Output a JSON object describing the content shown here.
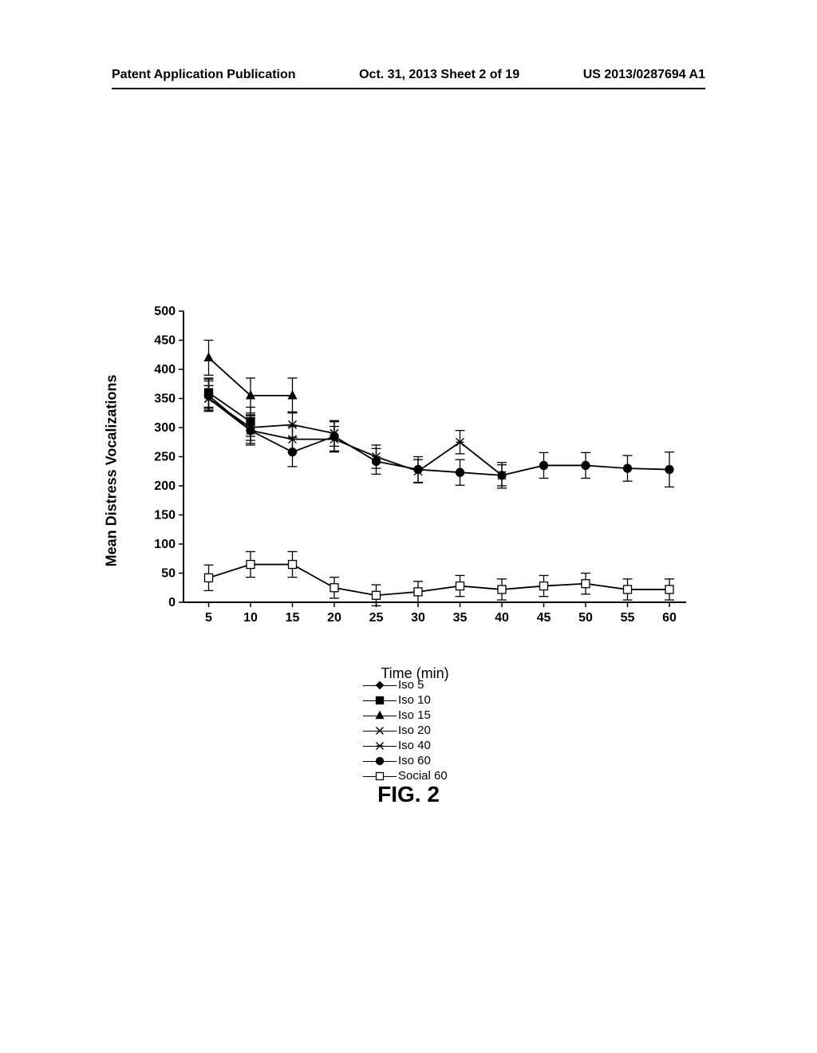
{
  "header": {
    "left": "Patent Application Publication",
    "center": "Oct. 31, 2013  Sheet 2 of 19",
    "right": "US 2013/0287694 A1"
  },
  "figure_caption": "FIG. 2",
  "chart": {
    "type": "line",
    "ylabel": "Mean Distress Vocalizations",
    "xlabel": "Time (min)",
    "background_color": "#ffffff",
    "axis_color": "#000000",
    "x_ticks": [
      5,
      10,
      15,
      20,
      25,
      30,
      35,
      40,
      45,
      50,
      55,
      60
    ],
    "y_ticks": [
      0,
      50,
      100,
      150,
      200,
      250,
      300,
      350,
      400,
      450,
      500
    ],
    "xlim": [
      2,
      62
    ],
    "ylim": [
      0,
      500
    ],
    "tick_fontsize": 16,
    "line_width": 1.8,
    "error_cap_width": 6,
    "series": [
      {
        "name": "Iso 5",
        "marker": "diamond",
        "fill": true,
        "x": [
          5
        ],
        "y": [
          358
        ],
        "err": [
          25
        ]
      },
      {
        "name": "Iso 10",
        "marker": "square",
        "fill": true,
        "x": [
          5,
          10
        ],
        "y": [
          360,
          310
        ],
        "err": [
          25,
          25
        ]
      },
      {
        "name": "Iso 15",
        "marker": "triangle",
        "fill": true,
        "x": [
          5,
          10,
          15
        ],
        "y": [
          420,
          355,
          355
        ],
        "err": [
          30,
          30,
          30
        ]
      },
      {
        "name": "Iso 20",
        "marker": "x",
        "fill": false,
        "x": [
          5,
          10,
          15,
          20
        ],
        "y": [
          350,
          300,
          305,
          290
        ],
        "err": [
          22,
          22,
          22,
          22
        ]
      },
      {
        "name": "Iso 40",
        "marker": "asterisk",
        "fill": false,
        "x": [
          5,
          10,
          15,
          20,
          25,
          30,
          35,
          40
        ],
        "y": [
          350,
          295,
          280,
          280,
          250,
          225,
          275,
          218
        ],
        "err": [
          22,
          22,
          22,
          22,
          20,
          20,
          20,
          18
        ]
      },
      {
        "name": "Iso 60",
        "marker": "circle",
        "fill": true,
        "x": [
          5,
          10,
          15,
          20,
          25,
          30,
          35,
          40,
          45,
          50,
          55,
          60
        ],
        "y": [
          355,
          295,
          258,
          285,
          242,
          228,
          223,
          218,
          235,
          235,
          230,
          228
        ],
        "err": [
          25,
          25,
          25,
          25,
          22,
          22,
          22,
          22,
          22,
          22,
          22,
          30
        ]
      },
      {
        "name": "Social 60",
        "marker": "square",
        "fill": false,
        "x": [
          5,
          10,
          15,
          20,
          25,
          30,
          35,
          40,
          45,
          50,
          55,
          60
        ],
        "y": [
          42,
          65,
          65,
          25,
          12,
          18,
          28,
          22,
          28,
          32,
          22,
          22
        ],
        "err": [
          22,
          22,
          22,
          18,
          18,
          18,
          18,
          18,
          18,
          18,
          18,
          18
        ]
      }
    ]
  }
}
